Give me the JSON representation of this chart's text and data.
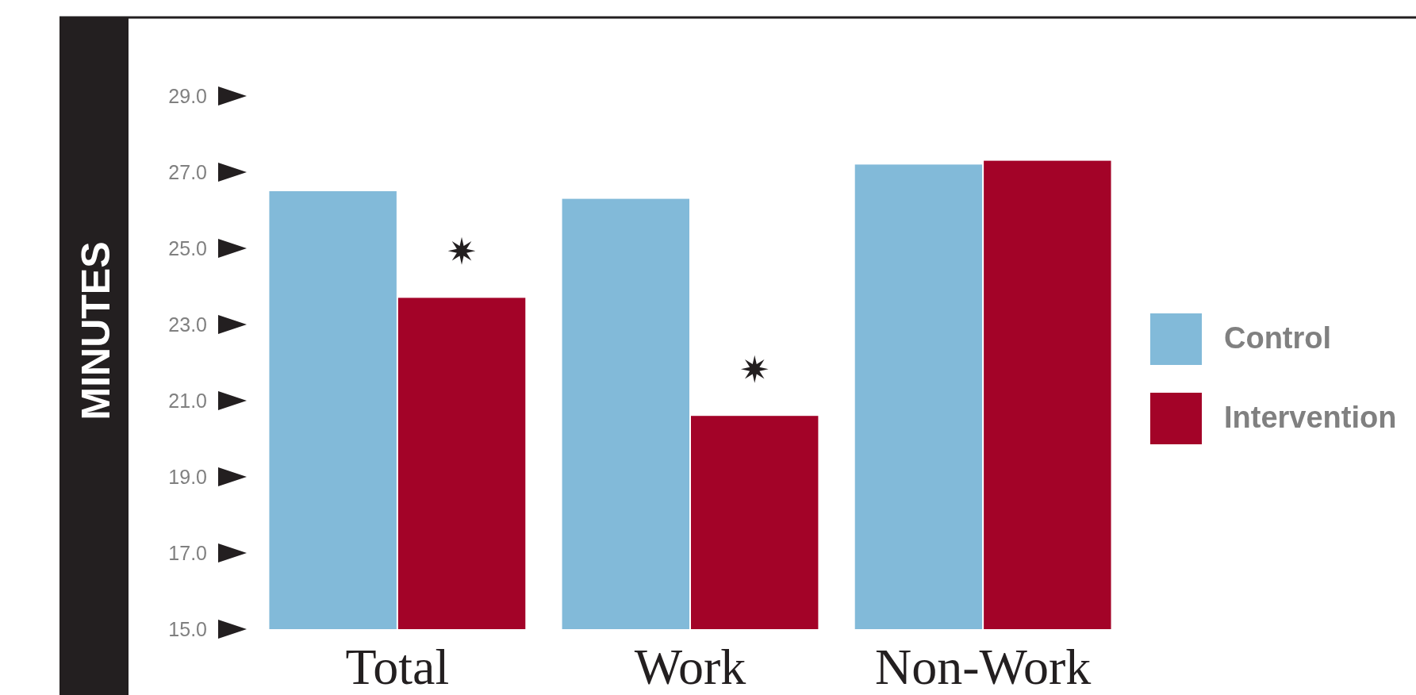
{
  "chart_data": {
    "type": "bar",
    "ylabel": "MINUTES",
    "categories": [
      "Total",
      "Work",
      "Non-Work"
    ],
    "series": [
      {
        "name": "Control",
        "color": "#82bad9",
        "values": [
          26.5,
          26.3,
          27.2
        ]
      },
      {
        "name": "Intervention",
        "color": "#a30328",
        "values": [
          23.7,
          20.6,
          27.3
        ]
      }
    ],
    "ylim": [
      15,
      29
    ],
    "yticks": [
      {
        "value": 15,
        "label": "15.0"
      },
      {
        "value": 17,
        "label": "17.0"
      },
      {
        "value": 19,
        "label": "19.0"
      },
      {
        "value": 21,
        "label": "21.0"
      },
      {
        "value": 23,
        "label": "23.0"
      },
      {
        "value": 25,
        "label": "25.0"
      },
      {
        "value": 27,
        "label": "27.0"
      },
      {
        "value": 29,
        "label": "29.0"
      }
    ],
    "annotations": [
      "✷",
      "✷"
    ],
    "legend": "right",
    "grid": false
  }
}
